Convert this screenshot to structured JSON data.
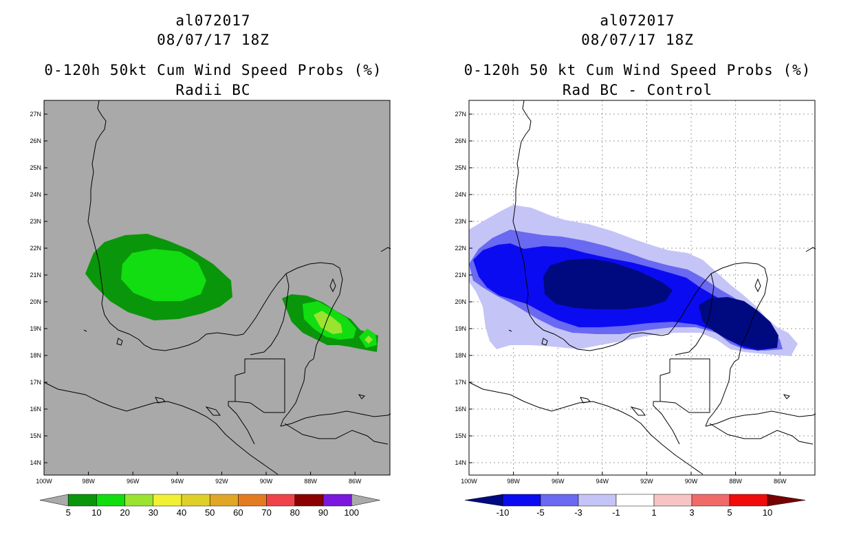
{
  "left": {
    "storm_id": "al072017",
    "datetime": "08/07/17 18Z",
    "title": "0-120h 50kt Cum Wind Speed Probs (%)",
    "subtitle": "Radii BC",
    "background_color": "#a9a9a9",
    "colorbar": {
      "colors": [
        "#aaaaaa",
        "#0a960a",
        "#11dd11",
        "#9ae331",
        "#f1f033",
        "#dfcf29",
        "#e0a627",
        "#e57b21",
        "#f0424a",
        "#8b0000",
        "#7b18de",
        "#aaaaaa"
      ],
      "labels": [
        "5",
        "10",
        "20",
        "30",
        "40",
        "50",
        "60",
        "70",
        "80",
        "90",
        "100"
      ]
    },
    "contours": [
      {
        "level": "5-10%",
        "color": "#0a960a"
      },
      {
        "level": "10-20%",
        "color": "#11dd11"
      },
      {
        "level": "20-30%",
        "color": "#9ae331"
      }
    ]
  },
  "right": {
    "storm_id": "al072017",
    "datetime": "08/07/17 18Z",
    "title": "0-120h 50 kt Cum Wind Speed Probs (%)",
    "subtitle": "Rad BC - Control",
    "background_color": "#ffffff",
    "colorbar": {
      "colors": [
        "#000a80",
        "#0b0bf2",
        "#6969f1",
        "#c4c4f7",
        "#ffffff",
        "#f7c4c4",
        "#f06a6a",
        "#f10c0c",
        "#770000"
      ],
      "labels": [
        "-10",
        "-5",
        "-3",
        "-1",
        "1",
        "3",
        "5",
        "10"
      ]
    },
    "contours": [
      {
        "level": "-1 to -3",
        "color": "#c4c4f7"
      },
      {
        "level": "-3 to -5",
        "color": "#6969f1"
      },
      {
        "level": "-5 to -10",
        "color": "#0b0bf2"
      },
      {
        "level": "< -10",
        "color": "#000a80"
      }
    ]
  },
  "axes": {
    "lat_labels": [
      "27N",
      "26N",
      "25N",
      "24N",
      "23N",
      "22N",
      "21N",
      "20N",
      "19N",
      "18N",
      "17N",
      "16N",
      "15N",
      "14N"
    ],
    "lon_labels": [
      "100W",
      "98W",
      "96W",
      "94W",
      "92W",
      "90W",
      "88W",
      "86W"
    ]
  }
}
